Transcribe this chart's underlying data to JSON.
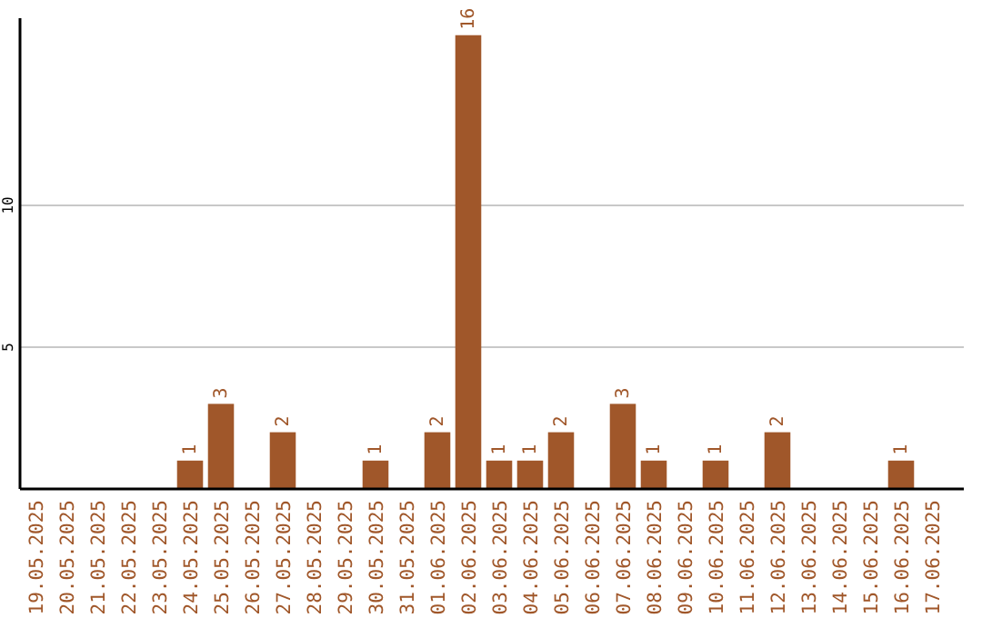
{
  "chart_data": {
    "type": "bar",
    "categories": [
      "19.05.2025",
      "20.05.2025",
      "21.05.2025",
      "22.05.2025",
      "23.05.2025",
      "24.05.2025",
      "25.05.2025",
      "26.05.2025",
      "27.05.2025",
      "28.05.2025",
      "29.05.2025",
      "30.05.2025",
      "31.05.2025",
      "01.06.2025",
      "02.06.2025",
      "03.06.2025",
      "04.06.2025",
      "05.06.2025",
      "06.06.2025",
      "07.06.2025",
      "08.06.2025",
      "09.06.2025",
      "10.06.2025",
      "11.06.2025",
      "12.06.2025",
      "13.06.2025",
      "14.06.2025",
      "15.06.2025",
      "16.06.2025",
      "17.06.2025"
    ],
    "values": [
      0,
      0,
      0,
      0,
      0,
      1,
      3,
      0,
      2,
      0,
      0,
      1,
      0,
      2,
      16,
      1,
      1,
      2,
      0,
      3,
      1,
      0,
      1,
      0,
      2,
      0,
      0,
      0,
      1,
      0
    ],
    "value_labels": [
      null,
      null,
      null,
      null,
      null,
      "1",
      "3",
      null,
      "2",
      null,
      null,
      "1",
      null,
      "2",
      "16",
      "1",
      "1",
      "2",
      null,
      "3",
      "1",
      null,
      "1",
      null,
      "2",
      null,
      null,
      null,
      "1",
      null
    ],
    "color": "#a0572a",
    "ylim": [
      0,
      16.6
    ],
    "yticks": [
      5,
      10
    ],
    "grid": "y"
  }
}
